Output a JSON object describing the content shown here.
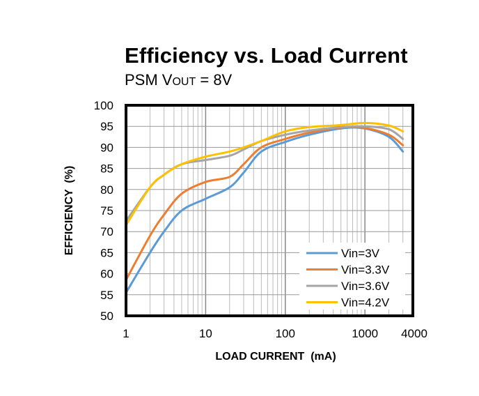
{
  "chart_data": {
    "type": "line",
    "title": "Efficiency vs. Load Current",
    "subtitle": {
      "prefix": "PSM V",
      "subscript": "OUT",
      "suffix": " = 8V"
    },
    "xlabel": "LOAD CURRENT  (mA)",
    "ylabel": "EFFICIENCY  (%)",
    "xscale": "log",
    "xlim": [
      1,
      4000
    ],
    "ylim": [
      50,
      100
    ],
    "xticks": [
      1,
      10,
      100,
      1000,
      4000
    ],
    "xtick_labels": [
      "1",
      "10",
      "100",
      "1000",
      "4000"
    ],
    "yticks": [
      50,
      55,
      60,
      65,
      70,
      75,
      80,
      85,
      90,
      95,
      100
    ],
    "ytick_labels": [
      "50",
      "55",
      "60",
      "65",
      "70",
      "75",
      "80",
      "85",
      "90",
      "95",
      "100"
    ],
    "grid": true,
    "legend": "bottom-right",
    "x": [
      1,
      2,
      3,
      5,
      10,
      20,
      30,
      50,
      100,
      200,
      500,
      1000,
      2000,
      3000
    ],
    "series": [
      {
        "name": "Vin=3V",
        "color": "#5B9BD5",
        "values": [
          55.5,
          65,
          70,
          75,
          77.8,
          80.5,
          84,
          89,
          91.3,
          93,
          94.5,
          94.5,
          92.5,
          89
        ]
      },
      {
        "name": "Vin=3.3V",
        "color": "#ED7D31",
        "values": [
          58.5,
          69,
          74,
          79,
          81.8,
          83,
          86,
          90,
          92,
          93.5,
          94.7,
          94.6,
          93,
          90.5
        ]
      },
      {
        "name": "Vin=3.6V",
        "color": "#A5A5A5",
        "values": [
          72.5,
          80.5,
          83.5,
          86,
          87,
          88,
          89.5,
          91.5,
          93,
          94,
          94.8,
          95,
          94.3,
          92
        ]
      },
      {
        "name": "Vin=4.2V",
        "color": "#FFC000",
        "values": [
          71.5,
          80.5,
          83.5,
          86,
          87.8,
          89,
          90,
          91.5,
          93.8,
          94.8,
          95.3,
          95.8,
          95.2,
          93.8
        ]
      }
    ]
  }
}
